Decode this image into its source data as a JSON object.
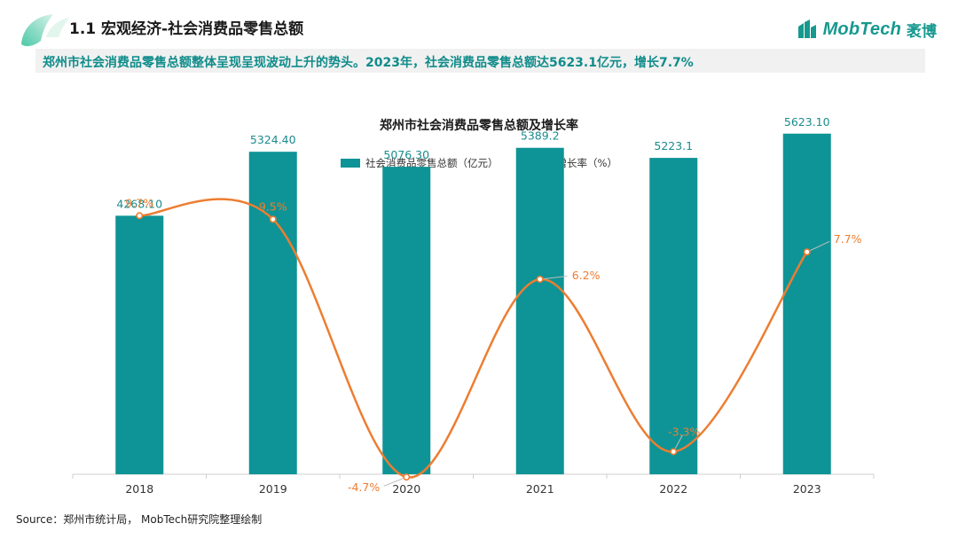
{
  "header": {
    "section_title": "1.1 宏观经济-社会消费品零售总额",
    "summary": "郑州市社会消费品零售总额整体呈现呈现波动上升的势头。2023年，社会消费品零售总额达5623.1亿元，增长7.7%"
  },
  "brand": {
    "name": "MobTech",
    "name_cn": "袤博",
    "color": "#17998f"
  },
  "colors": {
    "bar": "#0e9496",
    "line": "#ed7d31",
    "bar_label": "#1b8b8d",
    "line_label": "#ed7d31"
  },
  "chart_data": {
    "type": "bar+line",
    "title": "郑州市社会消费品零售总额及增长率",
    "categories": [
      "2018",
      "2019",
      "2020",
      "2021",
      "2022",
      "2023"
    ],
    "series": [
      {
        "name": "社会消费品零售总额（亿元）",
        "type": "bar",
        "values": [
          4268.1,
          5324.4,
          5076.3,
          5389.2,
          5223.1,
          5623.1
        ],
        "labels": [
          "4268.10",
          "5324.40",
          "5076.30",
          "5389.2",
          "5223.1",
          "5623.10"
        ]
      },
      {
        "name": "增长率（%）",
        "type": "line",
        "values": [
          9.7,
          9.5,
          -4.7,
          6.2,
          -3.3,
          7.7
        ],
        "labels": [
          "9.7%",
          "9.5%",
          "-4.7%",
          "6.2%",
          "-3.3%",
          "7.7%"
        ]
      }
    ],
    "bar_axis_range": [
      0,
      6000
    ],
    "line_axis_range": [
      -6.5,
      14.5
    ],
    "legend_position": "top-center",
    "grid": false
  },
  "source": "Source：郑州市统计局， MobTech研究院整理绘制"
}
